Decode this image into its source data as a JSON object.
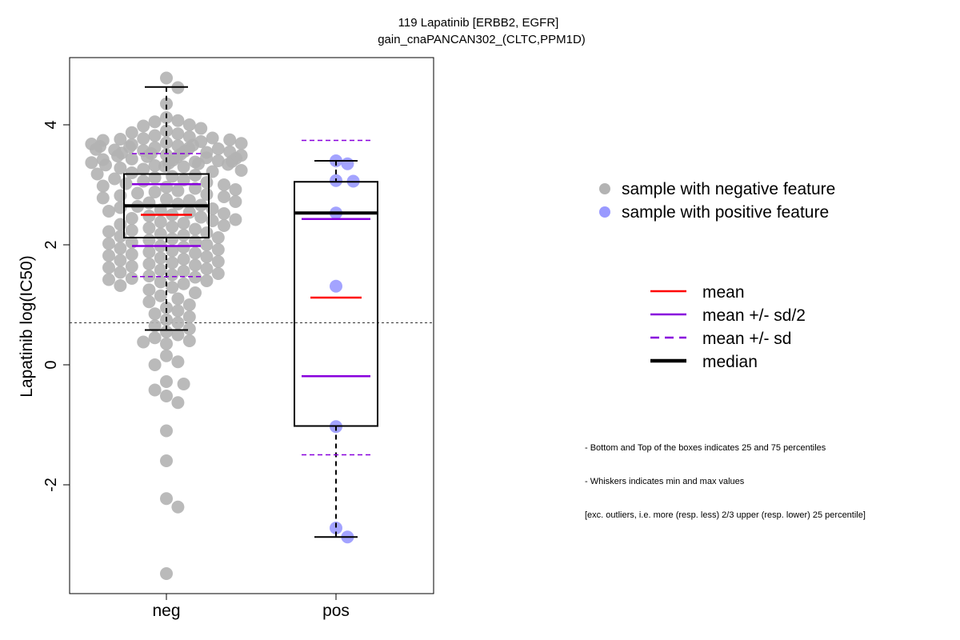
{
  "chart_data": {
    "type": "boxplot",
    "title": "119 Lapatinib [ERBB2, EGFR]",
    "subtitle": "gain_cnaPANCAN302_(CLTC,PPM1D)",
    "ylabel": "Lapatinib log(IC50)",
    "ylim": [
      -3.8,
      5.1
    ],
    "yticks": [
      -2,
      0,
      2,
      4
    ],
    "ytick_labels": [
      "-2",
      "0",
      "2",
      "4"
    ],
    "categories": [
      "neg",
      "pos"
    ],
    "reference_line": 0.7,
    "groups": [
      {
        "name": "neg",
        "color": "#b3b3b3",
        "q1": 2.12,
        "median": 2.65,
        "q3": 3.18,
        "whisker_low": 0.58,
        "whisker_high": 4.63,
        "mean": 2.5,
        "mean_minus_half_sd": 1.98,
        "mean_plus_half_sd": 3.01,
        "mean_minus_sd": 1.47,
        "mean_plus_sd": 3.52,
        "points": [
          4.78,
          4.62,
          4.35,
          4.12,
          4.07,
          4.05,
          4.0,
          3.98,
          3.94,
          3.9,
          3.87,
          3.85,
          3.82,
          3.8,
          3.78,
          3.77,
          3.76,
          3.75,
          3.74,
          3.72,
          3.7,
          3.69,
          3.68,
          3.67,
          3.66,
          3.65,
          3.64,
          3.63,
          3.62,
          3.61,
          3.6,
          3.59,
          3.58,
          3.57,
          3.56,
          3.55,
          3.54,
          3.53,
          3.52,
          3.51,
          3.5,
          3.49,
          3.48,
          3.47,
          3.46,
          3.45,
          3.44,
          3.43,
          3.42,
          3.41,
          3.4,
          3.39,
          3.38,
          3.37,
          3.36,
          3.35,
          3.34,
          3.33,
          3.32,
          3.31,
          3.3,
          3.28,
          3.26,
          3.24,
          3.22,
          3.2,
          3.18,
          3.16,
          3.14,
          3.12,
          3.1,
          3.08,
          3.06,
          3.04,
          3.02,
          3.0,
          2.98,
          2.96,
          2.94,
          2.92,
          2.9,
          2.88,
          2.86,
          2.84,
          2.82,
          2.8,
          2.78,
          2.76,
          2.74,
          2.72,
          2.7,
          2.68,
          2.66,
          2.64,
          2.62,
          2.6,
          2.58,
          2.56,
          2.54,
          2.52,
          2.5,
          2.48,
          2.46,
          2.44,
          2.42,
          2.4,
          2.38,
          2.36,
          2.34,
          2.32,
          2.3,
          2.28,
          2.26,
          2.24,
          2.22,
          2.2,
          2.18,
          2.16,
          2.14,
          2.12,
          2.1,
          2.08,
          2.06,
          2.04,
          2.02,
          2.0,
          1.98,
          1.96,
          1.94,
          1.92,
          1.9,
          1.88,
          1.86,
          1.84,
          1.82,
          1.8,
          1.78,
          1.76,
          1.74,
          1.72,
          1.7,
          1.68,
          1.66,
          1.64,
          1.62,
          1.6,
          1.58,
          1.56,
          1.54,
          1.52,
          1.5,
          1.48,
          1.46,
          1.44,
          1.42,
          1.4,
          1.38,
          1.35,
          1.32,
          1.29,
          1.25,
          1.2,
          1.15,
          1.1,
          1.05,
          1.0,
          0.95,
          0.9,
          0.85,
          0.8,
          0.75,
          0.7,
          0.65,
          0.6,
          0.55,
          0.5,
          0.45,
          0.4,
          0.38,
          0.35,
          0.15,
          0.05,
          0.0,
          -0.28,
          -0.32,
          -0.42,
          -0.52,
          -0.63,
          -1.1,
          -1.6,
          -2.23,
          -2.37,
          -3.48
        ]
      },
      {
        "name": "pos",
        "color": "#9999ff",
        "q1": -1.02,
        "median": 2.53,
        "q3": 3.05,
        "whisker_low": -2.87,
        "whisker_high": 3.4,
        "mean": 1.12,
        "mean_minus_half_sd": -0.19,
        "mean_plus_half_sd": 2.43,
        "mean_minus_sd": -1.5,
        "mean_plus_sd": 3.74,
        "points": [
          3.4,
          3.35,
          3.07,
          3.06,
          2.53,
          1.31,
          -1.03,
          -2.72,
          -2.87
        ]
      }
    ],
    "legend_points": [
      {
        "label": "sample with negative feature",
        "color": "#b3b3b3"
      },
      {
        "label": "sample with positive feature",
        "color": "#9999ff"
      }
    ],
    "legend_lines": [
      {
        "label": "mean",
        "color": "#ff0000",
        "style": "solid",
        "weight": "normal"
      },
      {
        "label": "mean +/- sd/2",
        "color": "#8800dd",
        "style": "solid",
        "weight": "normal"
      },
      {
        "label": "mean +/- sd",
        "color": "#8800dd",
        "style": "dashed",
        "weight": "normal"
      },
      {
        "label": "median",
        "color": "#000000",
        "style": "solid",
        "weight": "bold"
      }
    ],
    "notes": [
      "- Bottom and Top of the boxes indicates 25 and 75 percentiles",
      "- Whiskers indicates min and max values",
      "[exc. outliers, i.e. more (resp. less) 2/3 upper (resp. lower) 25 percentile]"
    ]
  }
}
